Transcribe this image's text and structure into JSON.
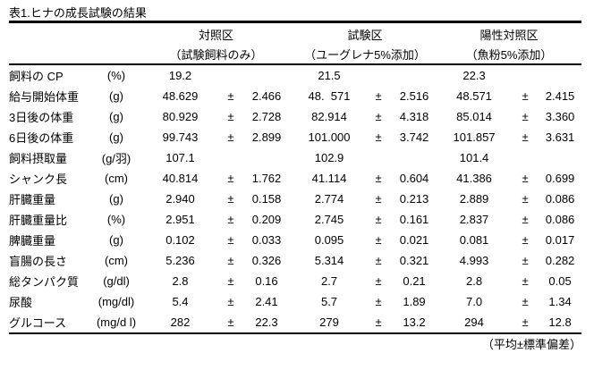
{
  "title": "表1.ヒナの成長試験の結果",
  "footer": "（平均±標準偏差）",
  "table": {
    "groups": [
      {
        "name": "対照区",
        "sub": "（試験飼料のみ）"
      },
      {
        "name": "試験区",
        "sub": "（ユーグレナ5%添加）"
      },
      {
        "name": "陽性対照区",
        "sub": "（魚粉5%添加）"
      }
    ],
    "rows": [
      {
        "label": "飼料の CP",
        "unit": "(%)",
        "groups": [
          {
            "mean": "19.2",
            "pm": "",
            "sd": ""
          },
          {
            "mean": "21.5",
            "pm": "",
            "sd": ""
          },
          {
            "mean": "22.3",
            "pm": "",
            "sd": ""
          }
        ]
      },
      {
        "label": "給与開始体重",
        "unit": "(g)",
        "groups": [
          {
            "mean": "48.629",
            "pm": "±",
            "sd": "2.466"
          },
          {
            "mean": "48.  571",
            "pm": "±",
            "sd": "2.516"
          },
          {
            "mean": "48.571",
            "pm": "±",
            "sd": "2.415"
          }
        ]
      },
      {
        "label": "3日後の体重",
        "unit": "(g)",
        "groups": [
          {
            "mean": "80.929",
            "pm": "±",
            "sd": "2.728"
          },
          {
            "mean": "82.914",
            "pm": "±",
            "sd": "4.318"
          },
          {
            "mean": "85.014",
            "pm": "±",
            "sd": "3.360"
          }
        ]
      },
      {
        "label": "6日後の体重",
        "unit": "(g)",
        "groups": [
          {
            "mean": "99.743",
            "pm": "±",
            "sd": "2.899"
          },
          {
            "mean": "101.000",
            "pm": "±",
            "sd": "3.742"
          },
          {
            "mean": "101.857",
            "pm": "±",
            "sd": "3.631"
          }
        ]
      },
      {
        "label": "飼料摂取量",
        "unit": "(g/羽)",
        "groups": [
          {
            "mean": "107.1",
            "pm": "",
            "sd": ""
          },
          {
            "mean": "102.9",
            "pm": "",
            "sd": ""
          },
          {
            "mean": "101.4",
            "pm": "",
            "sd": ""
          }
        ]
      },
      {
        "label": "シャンク長",
        "unit": "(cm)",
        "groups": [
          {
            "mean": "40.814",
            "pm": "±",
            "sd": "1.762"
          },
          {
            "mean": "41.114",
            "pm": "±",
            "sd": "0.604"
          },
          {
            "mean": "41.386",
            "pm": "±",
            "sd": "0.699"
          }
        ]
      },
      {
        "label": "肝臓重量",
        "unit": "(g)",
        "groups": [
          {
            "mean": "2.940",
            "pm": "±",
            "sd": "0.158"
          },
          {
            "mean": "2.774",
            "pm": "±",
            "sd": "0.213"
          },
          {
            "mean": "2.889",
            "pm": "±",
            "sd": "0.086"
          }
        ]
      },
      {
        "label": "肝臓重量比",
        "unit": "(%)",
        "groups": [
          {
            "mean": "2.951",
            "pm": "±",
            "sd": "0.209"
          },
          {
            "mean": "2.745",
            "pm": "±",
            "sd": "0.161"
          },
          {
            "mean": "2.837",
            "pm": "±",
            "sd": "0.086"
          }
        ]
      },
      {
        "label": "脾臓重量",
        "unit": "(g)",
        "groups": [
          {
            "mean": "0.102",
            "pm": "±",
            "sd": "0.033"
          },
          {
            "mean": "0.095",
            "pm": "±",
            "sd": "0.021"
          },
          {
            "mean": "0.081",
            "pm": "±",
            "sd": "0.017"
          }
        ]
      },
      {
        "label": "盲腸の長さ",
        "unit": "(cm)",
        "groups": [
          {
            "mean": "5.236",
            "pm": "±",
            "sd": "0.326"
          },
          {
            "mean": "5.314",
            "pm": "±",
            "sd": "0.321"
          },
          {
            "mean": "4.993",
            "pm": "±",
            "sd": "0.282"
          }
        ]
      },
      {
        "label": "総タンパク質",
        "unit": "(g/dl)",
        "groups": [
          {
            "mean": "2.8",
            "pm": "±",
            "sd": "0.16"
          },
          {
            "mean": "2.7",
            "pm": "±",
            "sd": "0.21"
          },
          {
            "mean": "2.8",
            "pm": "±",
            "sd": "0.05"
          }
        ]
      },
      {
        "label": "尿酸",
        "unit": "(mg/dl)",
        "groups": [
          {
            "mean": "5.4",
            "pm": "±",
            "sd": "2.41"
          },
          {
            "mean": "5.7",
            "pm": "±",
            "sd": "1.89"
          },
          {
            "mean": "7.0",
            "pm": "±",
            "sd": "1.34"
          }
        ]
      },
      {
        "label": "グルコース",
        "unit": "(mg/d l)",
        "groups": [
          {
            "mean": "282",
            "pm": "±",
            "sd": "22.3"
          },
          {
            "mean": "279",
            "pm": "±",
            "sd": "13.2"
          },
          {
            "mean": "294",
            "pm": "±",
            "sd": "12.8"
          }
        ]
      }
    ]
  }
}
